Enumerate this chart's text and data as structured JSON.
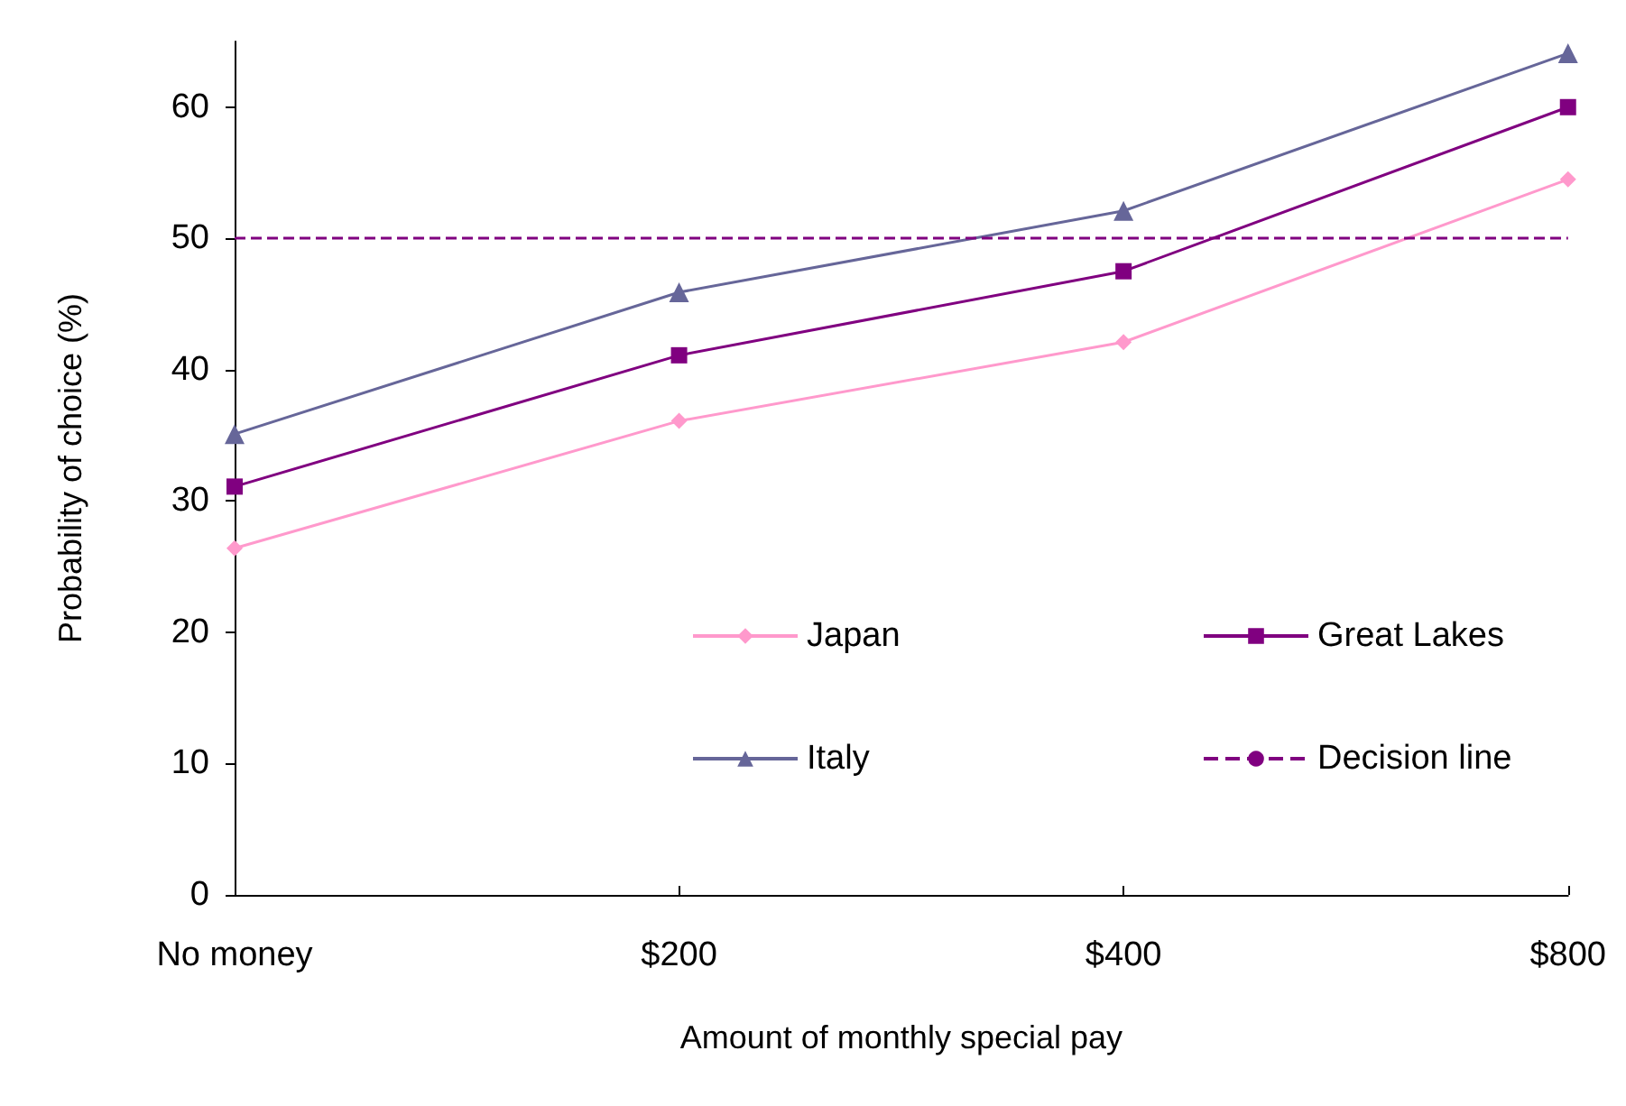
{
  "chart_data": {
    "type": "line",
    "xlabel": "Amount of monthly special pay",
    "ylabel": "Probability of choice (%)",
    "categories": [
      "No money",
      "$200",
      "$400",
      "$800"
    ],
    "series": [
      {
        "name": "Japan",
        "color": "#ff99cc",
        "marker": "diamond",
        "values": [
          26.4,
          36.1,
          42.1,
          54.5
        ]
      },
      {
        "name": "Great Lakes",
        "color": "#800080",
        "marker": "square",
        "values": [
          31.1,
          41.1,
          47.5,
          60
        ]
      },
      {
        "name": "Italy",
        "color": "#666699",
        "marker": "triangle",
        "values": [
          35.1,
          45.9,
          52.1,
          64.1
        ]
      }
    ],
    "ref_lines": [
      {
        "axis": "y",
        "value": 50,
        "label": "Decision line",
        "color": "#800080",
        "line_style": "dashed"
      }
    ],
    "ylim": [
      0,
      65
    ],
    "yticks": [
      0,
      10,
      20,
      30,
      40,
      50,
      60
    ],
    "grid": false,
    "legend": "bottom right",
    "line_style": "solid"
  }
}
